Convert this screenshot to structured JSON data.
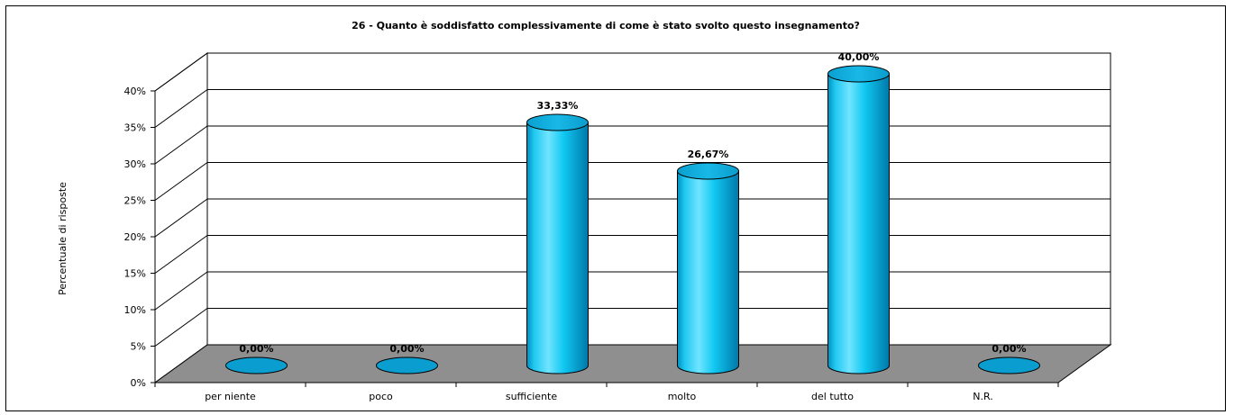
{
  "chart_data": {
    "type": "bar",
    "title": "26 - Quanto è soddisfatto complessivamente di come è stato svolto questo insegnamento?",
    "ylabel": "Percentuale di risposte",
    "xlabel": "",
    "categories": [
      "per niente",
      "poco",
      "sufficiente",
      "molto",
      "del tutto",
      "N.R."
    ],
    "values": [
      0,
      0,
      33.33,
      26.67,
      40,
      0
    ],
    "data_labels": [
      "0,00%",
      "0,00%",
      "33,33%",
      "26,67%",
      "40,00%",
      "0,00%"
    ],
    "yticks": [
      "0%",
      "5%",
      "10%",
      "15%",
      "20%",
      "25%",
      "30%",
      "35%",
      "40%"
    ],
    "ylim": [
      0,
      40
    ],
    "bar_style": "3d-cylinder",
    "grid": true,
    "legend": "none",
    "colors": {
      "bar": "#00c8f0",
      "bar_dark": "#0088b8",
      "floor": "#8f8f8f",
      "zero_disc": "#0a9ed0"
    }
  }
}
